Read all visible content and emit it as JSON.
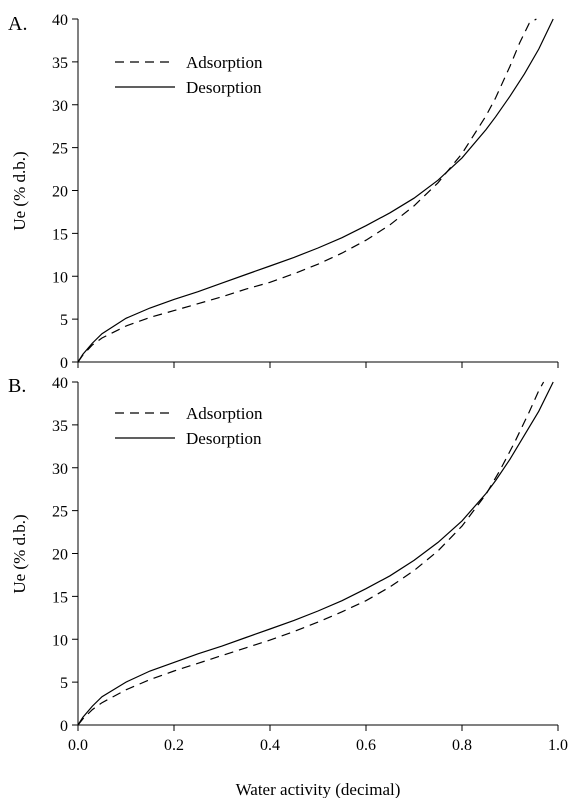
{
  "chart_data": [
    {
      "type": "line",
      "panel_label": "A.",
      "xlabel": "",
      "ylabel": "Ue (% d.b.)",
      "xlim": [
        0,
        1
      ],
      "ylim": [
        0,
        40
      ],
      "x_ticks": [],
      "y_ticks": [
        "0",
        "5",
        "10",
        "15",
        "20",
        "25",
        "30",
        "35",
        "40"
      ],
      "grid": false,
      "legend_position": "top-left",
      "series": [
        {
          "name": "Adsorption",
          "style": "dashed",
          "x": [
            0.0,
            0.01,
            0.03,
            0.05,
            0.1,
            0.15,
            0.2,
            0.25,
            0.3,
            0.35,
            0.4,
            0.45,
            0.5,
            0.55,
            0.6,
            0.65,
            0.7,
            0.75,
            0.8,
            0.85,
            0.87,
            0.9,
            0.92,
            0.94,
            0.955
          ],
          "y": [
            0,
            0.8,
            2.0,
            2.8,
            4.2,
            5.2,
            6.0,
            6.8,
            7.6,
            8.5,
            9.3,
            10.3,
            11.4,
            12.7,
            14.2,
            16.0,
            18.2,
            20.9,
            24.3,
            28.7,
            30.8,
            34.5,
            37.2,
            39.5,
            40
          ]
        },
        {
          "name": "Desorption",
          "style": "solid",
          "x": [
            0.0,
            0.01,
            0.03,
            0.05,
            0.1,
            0.15,
            0.2,
            0.25,
            0.3,
            0.35,
            0.4,
            0.45,
            0.5,
            0.55,
            0.6,
            0.65,
            0.7,
            0.75,
            0.8,
            0.85,
            0.87,
            0.9,
            0.93,
            0.96,
            0.99
          ],
          "y": [
            0,
            0.9,
            2.2,
            3.3,
            5.1,
            6.3,
            7.3,
            8.2,
            9.2,
            10.2,
            11.2,
            12.2,
            13.3,
            14.5,
            15.9,
            17.4,
            19.1,
            21.2,
            23.8,
            27.1,
            28.6,
            31.0,
            33.6,
            36.5,
            40
          ]
        }
      ]
    },
    {
      "type": "line",
      "panel_label": "B.",
      "xlabel": "Water activity (decimal)",
      "ylabel": "Ue (% d.b.)",
      "xlim": [
        0,
        1
      ],
      "ylim": [
        0,
        40
      ],
      "x_ticks": [
        "0.0",
        "0.2",
        "0.4",
        "0.6",
        "0.8",
        "1.0"
      ],
      "y_ticks": [
        "0",
        "5",
        "10",
        "15",
        "20",
        "25",
        "30",
        "35",
        "40"
      ],
      "grid": false,
      "legend_position": "top-left",
      "series": [
        {
          "name": "Adsorption",
          "style": "dashed",
          "x": [
            0.0,
            0.01,
            0.03,
            0.05,
            0.1,
            0.15,
            0.2,
            0.25,
            0.3,
            0.35,
            0.4,
            0.45,
            0.5,
            0.55,
            0.6,
            0.65,
            0.7,
            0.75,
            0.8,
            0.85,
            0.88,
            0.91,
            0.94,
            0.96,
            0.97
          ],
          "y": [
            0,
            0.7,
            1.8,
            2.6,
            4.1,
            5.3,
            6.3,
            7.2,
            8.1,
            9.0,
            9.9,
            10.9,
            12.0,
            13.2,
            14.5,
            16.1,
            18.0,
            20.3,
            23.2,
            26.9,
            29.8,
            33.0,
            36.5,
            39.0,
            40
          ]
        },
        {
          "name": "Desorption",
          "style": "solid",
          "x": [
            0.0,
            0.01,
            0.03,
            0.05,
            0.1,
            0.15,
            0.2,
            0.25,
            0.3,
            0.35,
            0.4,
            0.45,
            0.5,
            0.55,
            0.6,
            0.65,
            0.7,
            0.75,
            0.8,
            0.85,
            0.87,
            0.9,
            0.93,
            0.96,
            0.99
          ],
          "y": [
            0,
            0.9,
            2.2,
            3.3,
            5.0,
            6.3,
            7.3,
            8.3,
            9.2,
            10.2,
            11.2,
            12.2,
            13.3,
            14.5,
            15.9,
            17.4,
            19.2,
            21.3,
            23.8,
            27.0,
            28.5,
            31.0,
            33.8,
            36.6,
            40
          ]
        }
      ]
    }
  ]
}
